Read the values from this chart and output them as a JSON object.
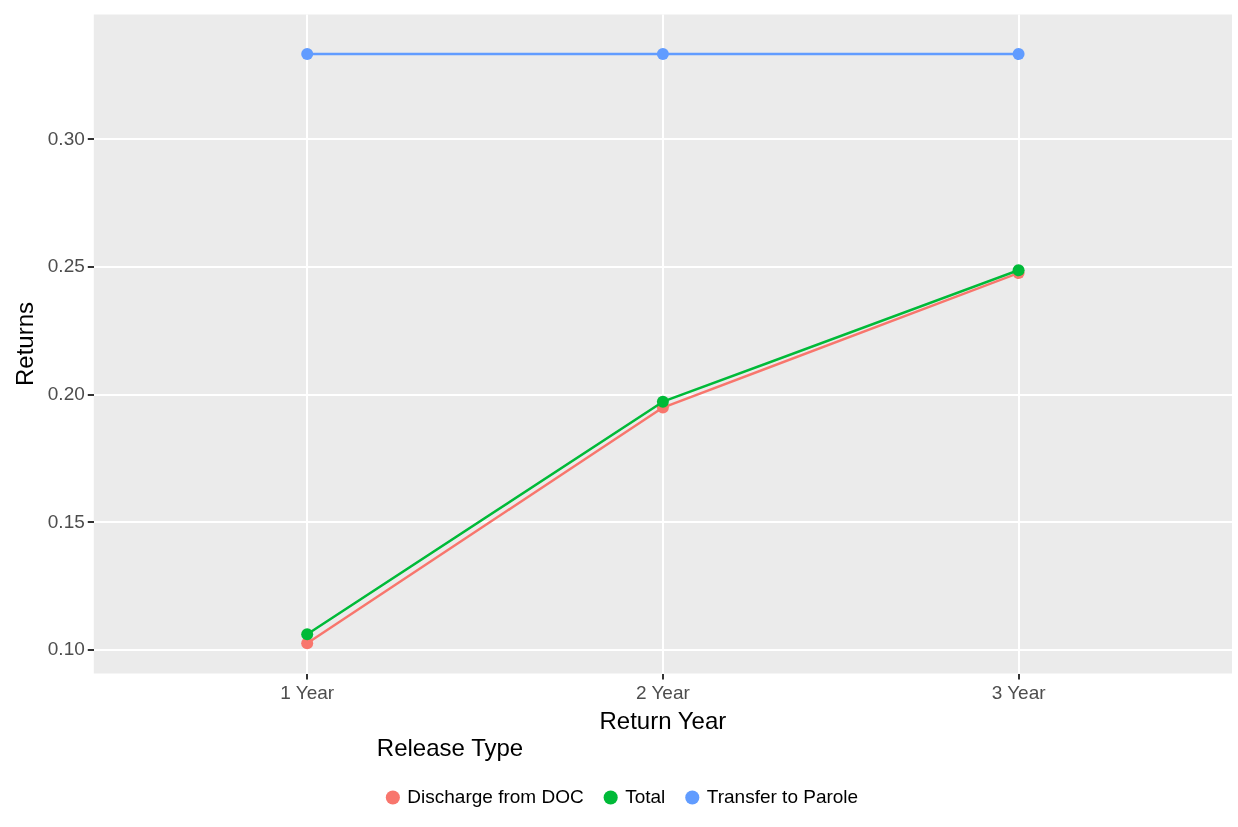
{
  "chart_data": {
    "type": "line",
    "xlabel": "Return Year",
    "ylabel": "Returns",
    "legend_title": "Release Type",
    "categories": [
      "1 Year",
      "2 Year",
      "3 Year"
    ],
    "series": [
      {
        "name": "Discharge from DOC",
        "color": "#f8766d",
        "values": [
          0.1027,
          0.195,
          0.2477
        ]
      },
      {
        "name": "Total",
        "color": "#00ba38",
        "values": [
          0.1062,
          0.1973,
          0.2488
        ]
      },
      {
        "name": "Transfer to Parole",
        "color": "#619cff",
        "values": [
          0.3335,
          0.3335,
          0.3335
        ]
      }
    ],
    "ylim": [
      0.0908,
      0.349
    ],
    "yticks": [
      {
        "value": 0.1,
        "label": "0.10"
      },
      0.15,
      {
        "value": 0.2,
        "label": "0.20"
      },
      0.25,
      {
        "value": 0.3,
        "label": "0.30"
      }
    ],
    "grid": true,
    "legend": "bottom",
    "marker": "circle",
    "line_style": "solid"
  }
}
